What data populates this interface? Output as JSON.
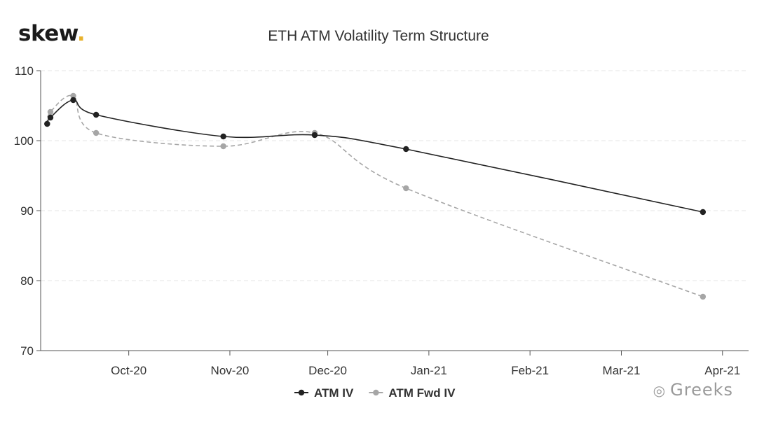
{
  "logo": {
    "text": "skew",
    "dot": "."
  },
  "watermark": {
    "text": "Greeks"
  },
  "chart_data": {
    "type": "line",
    "title": "ETH ATM Volatility Term Structure",
    "xlabel": "",
    "ylabel": "",
    "ylim": [
      70,
      110
    ],
    "yticks": [
      70,
      80,
      90,
      100,
      110
    ],
    "xlim": [
      "2020-09-04",
      "2021-04-09"
    ],
    "xticks": [
      {
        "label": "Oct-20",
        "date": "2020-10-01"
      },
      {
        "label": "Nov-20",
        "date": "2020-11-01"
      },
      {
        "label": "Dec-20",
        "date": "2020-12-01"
      },
      {
        "label": "Jan-21",
        "date": "2021-01-01"
      },
      {
        "label": "Feb-21",
        "date": "2021-02-01"
      },
      {
        "label": "Mar-21",
        "date": "2021-03-01"
      },
      {
        "label": "Apr-21",
        "date": "2021-04-01"
      }
    ],
    "grid": "horizontal",
    "legend": "bottom-center",
    "series": [
      {
        "name": "ATM IV",
        "color": "#222222",
        "dash": "solid",
        "x": [
          "2020-09-06",
          "2020-09-07",
          "2020-09-14",
          "2020-09-21",
          "2020-10-30",
          "2020-11-27",
          "2020-12-25",
          "2021-03-26"
        ],
        "values": [
          102.4,
          103.3,
          105.8,
          103.7,
          100.6,
          100.8,
          98.8,
          89.8
        ]
      },
      {
        "name": "ATM Fwd IV",
        "color": "#a6a6a6",
        "dash": "dashed",
        "x": [
          "2020-09-06",
          "2020-09-07",
          "2020-09-14",
          "2020-09-21",
          "2020-10-30",
          "2020-11-27",
          "2020-12-25",
          "2021-03-26"
        ],
        "values": [
          102.4,
          104.1,
          106.4,
          101.1,
          99.2,
          101.1,
          93.2,
          77.7
        ]
      }
    ]
  }
}
